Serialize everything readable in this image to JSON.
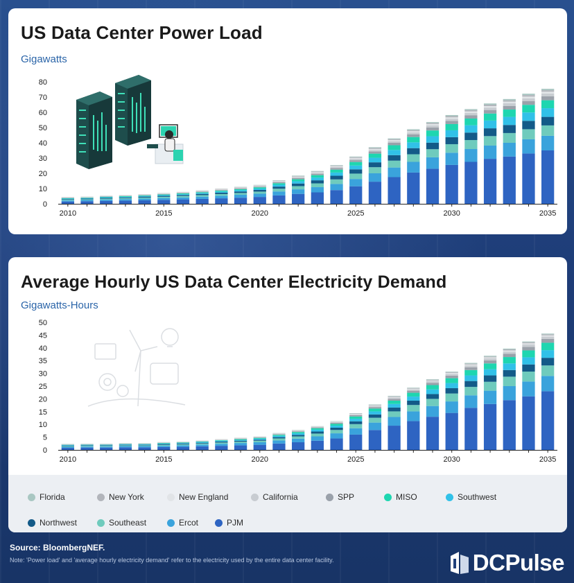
{
  "colors": {
    "PJM": "#2e64c2",
    "Ercot": "#3aa3dc",
    "Southeast": "#6fcbbd",
    "Northwest": "#135a88",
    "Southwest": "#31c1e8",
    "MISO": "#1ed6b0",
    "SPP": "#9aa1aa",
    "California": "#c8ccd1",
    "New England": "#e1e4e7",
    "New York": "#b2b5bb",
    "Florida": "#a9c7c2"
  },
  "chart_data": [
    {
      "type": "bar",
      "stacked": true,
      "title": "US Data Center Power Load",
      "ylabel": "Gigawatts",
      "xlabel": "",
      "ylim": [
        0,
        80
      ],
      "yticks": [
        0,
        10,
        20,
        30,
        40,
        50,
        60,
        70,
        80
      ],
      "xticks": [
        "2010",
        "2015",
        "2020",
        "2025",
        "2030",
        "2035"
      ],
      "categories": [
        "2010",
        "2011",
        "2012",
        "2013",
        "2014",
        "2015",
        "2016",
        "2017",
        "2018",
        "2019",
        "2020",
        "2021",
        "2022",
        "2023",
        "2024",
        "2025",
        "2026",
        "2027",
        "2028",
        "2029",
        "2030",
        "2031",
        "2032",
        "2033",
        "2034",
        "2035"
      ],
      "series": [
        {
          "name": "PJM",
          "values": [
            1.5,
            1.7,
            1.9,
            2.1,
            2.3,
            2.6,
            2.9,
            3.2,
            3.6,
            4.0,
            4.5,
            5.5,
            6.5,
            7.5,
            9.0,
            11.5,
            14.5,
            17.5,
            20.5,
            23.0,
            25.5,
            27.5,
            29.5,
            31.0,
            33.0,
            35.0
          ]
        },
        {
          "name": "Ercot",
          "values": [
            0.7,
            0.8,
            0.9,
            1.0,
            1.1,
            1.2,
            1.3,
            1.5,
            1.7,
            1.9,
            2.1,
            2.6,
            3.0,
            3.4,
            4.0,
            4.8,
            5.5,
            6.3,
            7.0,
            7.5,
            8.0,
            8.4,
            8.7,
            9.0,
            9.3,
            9.6
          ]
        },
        {
          "name": "Southeast",
          "values": [
            0.5,
            0.5,
            0.6,
            0.6,
            0.7,
            0.8,
            0.9,
            1.0,
            1.1,
            1.2,
            1.4,
            1.8,
            2.1,
            2.5,
            3.0,
            3.5,
            4.0,
            4.5,
            5.0,
            5.3,
            5.6,
            5.9,
            6.2,
            6.4,
            6.6,
            6.8
          ]
        },
        {
          "name": "Northwest",
          "values": [
            0.4,
            0.4,
            0.5,
            0.5,
            0.6,
            0.6,
            0.7,
            0.8,
            0.9,
            1.0,
            1.1,
            1.4,
            1.7,
            2.0,
            2.4,
            2.8,
            3.2,
            3.6,
            4.0,
            4.3,
            4.6,
            4.9,
            5.1,
            5.3,
            5.5,
            5.6
          ]
        },
        {
          "name": "Southwest",
          "values": [
            0.3,
            0.3,
            0.4,
            0.4,
            0.4,
            0.5,
            0.5,
            0.6,
            0.7,
            0.8,
            0.9,
            1.2,
            1.5,
            1.8,
            2.1,
            2.5,
            3.0,
            3.4,
            3.8,
            4.2,
            4.5,
            4.8,
            5.1,
            5.3,
            5.5,
            5.7
          ]
        },
        {
          "name": "MISO",
          "values": [
            0.3,
            0.3,
            0.3,
            0.4,
            0.4,
            0.4,
            0.5,
            0.5,
            0.6,
            0.7,
            0.8,
            1.0,
            1.3,
            1.6,
            1.9,
            2.3,
            2.7,
            3.1,
            3.5,
            3.8,
            4.1,
            4.4,
            4.6,
            4.8,
            5.0,
            5.2
          ]
        },
        {
          "name": "SPP",
          "values": [
            0.2,
            0.2,
            0.2,
            0.2,
            0.3,
            0.3,
            0.3,
            0.4,
            0.4,
            0.5,
            0.5,
            0.6,
            0.8,
            0.9,
            1.0,
            1.2,
            1.4,
            1.6,
            1.8,
            2.0,
            2.1,
            2.2,
            2.3,
            2.4,
            2.5,
            2.6
          ]
        },
        {
          "name": "California",
          "values": [
            0.2,
            0.2,
            0.2,
            0.2,
            0.2,
            0.3,
            0.3,
            0.3,
            0.4,
            0.4,
            0.4,
            0.5,
            0.6,
            0.7,
            0.8,
            0.9,
            1.0,
            1.1,
            1.2,
            1.3,
            1.4,
            1.5,
            1.6,
            1.7,
            1.8,
            1.8
          ]
        },
        {
          "name": "New England",
          "values": [
            0.1,
            0.1,
            0.1,
            0.1,
            0.1,
            0.2,
            0.2,
            0.2,
            0.2,
            0.2,
            0.3,
            0.3,
            0.4,
            0.4,
            0.5,
            0.6,
            0.7,
            0.7,
            0.8,
            0.9,
            0.9,
            1.0,
            1.0,
            1.1,
            1.1,
            1.2
          ]
        },
        {
          "name": "New York",
          "values": [
            0.1,
            0.1,
            0.1,
            0.1,
            0.1,
            0.1,
            0.1,
            0.2,
            0.2,
            0.2,
            0.2,
            0.3,
            0.3,
            0.4,
            0.4,
            0.5,
            0.6,
            0.6,
            0.7,
            0.7,
            0.8,
            0.8,
            0.9,
            0.9,
            1.0,
            1.0
          ]
        },
        {
          "name": "Florida",
          "values": [
            0.1,
            0.1,
            0.1,
            0.1,
            0.1,
            0.1,
            0.1,
            0.1,
            0.1,
            0.2,
            0.2,
            0.2,
            0.3,
            0.3,
            0.3,
            0.4,
            0.5,
            0.5,
            0.6,
            0.6,
            0.7,
            0.7,
            0.8,
            0.8,
            0.9,
            0.9
          ]
        }
      ]
    },
    {
      "type": "bar",
      "stacked": true,
      "title": "Average Hourly US Data Center Electricity Demand",
      "ylabel": "Gigawatts-Hours",
      "xlabel": "",
      "ylim": [
        0,
        50
      ],
      "yticks": [
        0,
        5,
        10,
        15,
        20,
        25,
        30,
        35,
        40,
        45,
        50
      ],
      "xticks": [
        "2010",
        "2015",
        "2020",
        "2025",
        "2030",
        "2035"
      ],
      "categories": [
        "2010",
        "2011",
        "2012",
        "2013",
        "2014",
        "2015",
        "2016",
        "2017",
        "2018",
        "2019",
        "2020",
        "2021",
        "2022",
        "2023",
        "2024",
        "2025",
        "2026",
        "2027",
        "2028",
        "2029",
        "2030",
        "2031",
        "2032",
        "2033",
        "2034",
        "2035"
      ],
      "series": [
        {
          "name": "PJM",
          "values": [
            0.8,
            0.9,
            0.9,
            1.0,
            1.0,
            1.1,
            1.2,
            1.4,
            1.6,
            1.8,
            2.0,
            2.5,
            3.0,
            3.6,
            4.5,
            6.0,
            7.8,
            9.5,
            11.3,
            13.0,
            14.5,
            16.5,
            18.0,
            19.5,
            21.0,
            23.0
          ]
        },
        {
          "name": "Ercot",
          "values": [
            0.4,
            0.4,
            0.4,
            0.5,
            0.5,
            0.5,
            0.6,
            0.7,
            0.8,
            0.9,
            1.0,
            1.2,
            1.4,
            1.7,
            2.0,
            2.5,
            2.9,
            3.4,
            3.8,
            4.2,
            4.5,
            4.9,
            5.2,
            5.5,
            5.8,
            6.0
          ]
        },
        {
          "name": "Southeast",
          "values": [
            0.3,
            0.3,
            0.3,
            0.3,
            0.3,
            0.4,
            0.4,
            0.4,
            0.5,
            0.5,
            0.6,
            0.8,
            0.9,
            1.1,
            1.3,
            1.6,
            1.9,
            2.2,
            2.5,
            2.8,
            3.1,
            3.3,
            3.5,
            3.7,
            3.9,
            4.1
          ]
        },
        {
          "name": "Northwest",
          "values": [
            0.2,
            0.2,
            0.2,
            0.2,
            0.2,
            0.3,
            0.3,
            0.3,
            0.4,
            0.4,
            0.4,
            0.5,
            0.6,
            0.8,
            0.9,
            1.1,
            1.3,
            1.5,
            1.7,
            1.9,
            2.1,
            2.3,
            2.5,
            2.6,
            2.8,
            3.0
          ]
        },
        {
          "name": "Southwest",
          "values": [
            0.2,
            0.2,
            0.2,
            0.2,
            0.2,
            0.2,
            0.2,
            0.3,
            0.3,
            0.3,
            0.4,
            0.5,
            0.6,
            0.7,
            0.8,
            1.0,
            1.2,
            1.4,
            1.6,
            1.8,
            2.0,
            2.2,
            2.4,
            2.6,
            2.8,
            3.0
          ]
        },
        {
          "name": "MISO",
          "values": [
            0.1,
            0.1,
            0.1,
            0.1,
            0.1,
            0.2,
            0.2,
            0.2,
            0.2,
            0.3,
            0.3,
            0.4,
            0.5,
            0.6,
            0.7,
            0.9,
            1.1,
            1.3,
            1.5,
            1.7,
            1.9,
            2.1,
            2.3,
            2.5,
            2.7,
            2.9
          ]
        },
        {
          "name": "SPP",
          "values": [
            0.1,
            0.1,
            0.1,
            0.1,
            0.1,
            0.1,
            0.1,
            0.1,
            0.1,
            0.2,
            0.2,
            0.2,
            0.3,
            0.3,
            0.4,
            0.5,
            0.6,
            0.7,
            0.8,
            0.9,
            1.0,
            1.1,
            1.2,
            1.3,
            1.4,
            1.5
          ]
        },
        {
          "name": "California",
          "values": [
            0.1,
            0.1,
            0.1,
            0.1,
            0.1,
            0.1,
            0.1,
            0.1,
            0.1,
            0.1,
            0.1,
            0.2,
            0.2,
            0.2,
            0.3,
            0.3,
            0.4,
            0.5,
            0.5,
            0.6,
            0.7,
            0.7,
            0.8,
            0.8,
            0.9,
            0.9
          ]
        },
        {
          "name": "New England",
          "values": [
            0.05,
            0.05,
            0.05,
            0.05,
            0.05,
            0.05,
            0.05,
            0.05,
            0.1,
            0.1,
            0.1,
            0.1,
            0.1,
            0.1,
            0.2,
            0.2,
            0.2,
            0.3,
            0.3,
            0.3,
            0.4,
            0.4,
            0.4,
            0.5,
            0.5,
            0.5
          ]
        },
        {
          "name": "New York",
          "values": [
            0.05,
            0.05,
            0.05,
            0.05,
            0.05,
            0.05,
            0.05,
            0.05,
            0.05,
            0.1,
            0.1,
            0.1,
            0.1,
            0.1,
            0.1,
            0.2,
            0.2,
            0.2,
            0.2,
            0.3,
            0.3,
            0.3,
            0.3,
            0.4,
            0.4,
            0.4
          ]
        },
        {
          "name": "Florida",
          "values": [
            0.05,
            0.05,
            0.05,
            0.05,
            0.05,
            0.05,
            0.05,
            0.05,
            0.05,
            0.05,
            0.05,
            0.1,
            0.1,
            0.1,
            0.1,
            0.1,
            0.2,
            0.2,
            0.2,
            0.2,
            0.2,
            0.3,
            0.3,
            0.3,
            0.3,
            0.3
          ]
        }
      ]
    }
  ],
  "legend": {
    "row1": [
      "Florida",
      "New York",
      "New England",
      "California",
      "SPP",
      "MISO",
      "Southwest"
    ],
    "row2": [
      "Northwest",
      "Southeast",
      "Ercot",
      "PJM"
    ]
  },
  "footer": {
    "source": "Source: BloombergNEF.",
    "note": "Note: 'Power load' and 'average hourly electricity demand' refer to the electricity used by the entire data center facility.",
    "brand": "DCPulse"
  }
}
